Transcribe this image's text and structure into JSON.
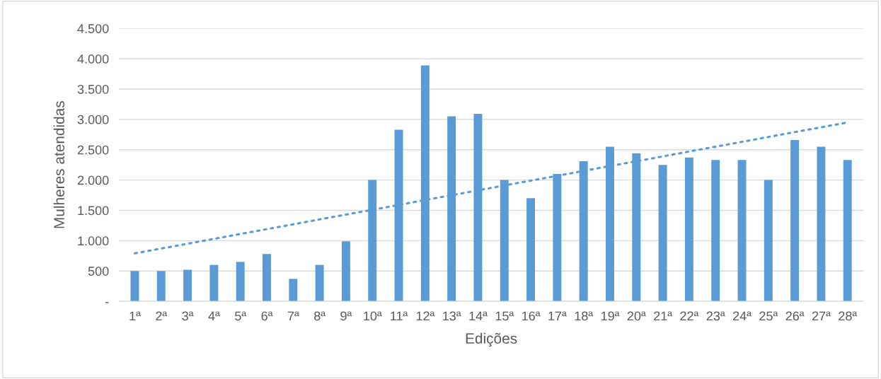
{
  "chart_data": {
    "type": "bar",
    "xlabel": "Edições",
    "ylabel": "Mulheres atendidas",
    "categories": [
      "1ª",
      "2ª",
      "3ª",
      "4ª",
      "5ª",
      "6ª",
      "7ª",
      "8ª",
      "9ª",
      "10ª",
      "11ª",
      "12ª",
      "13ª",
      "14ª",
      "15ª",
      "16ª",
      "17ª",
      "18ª",
      "19ª",
      "20ª",
      "21ª",
      "22ª",
      "23ª",
      "24ª",
      "25ª",
      "26ª",
      "27ª",
      "28ª"
    ],
    "series": [
      {
        "color": "#5b9bd5",
        "values": [
          500,
          500,
          520,
          600,
          650,
          780,
          370,
          600,
          990,
          2000,
          2830,
          3890,
          3050,
          3090,
          2000,
          1700,
          2100,
          2310,
          2550,
          2440,
          2250,
          2370,
          2330,
          2330,
          2000,
          2660,
          2550,
          2330
        ]
      },
      {
        "type": "line",
        "color": "#5b9bd5",
        "line_style": "dotted",
        "values": [
          790,
          870,
          950,
          1030,
          1110,
          1190,
          1270,
          1350,
          1430,
          1510,
          1590,
          1670,
          1750,
          1830,
          1910,
          1990,
          2070,
          2150,
          2230,
          2310,
          2390,
          2470,
          2550,
          2630,
          2710,
          2790,
          2870,
          2950
        ]
      }
    ],
    "ylim": [
      0,
      4500
    ],
    "yticks": [
      {
        "value": 0,
        "label": "-"
      },
      {
        "value": 500,
        "label": "500"
      },
      {
        "value": 1000,
        "label": "1.000"
      },
      {
        "value": 1500,
        "label": "1.500"
      },
      {
        "value": 2000,
        "label": "2.000"
      },
      {
        "value": 2500,
        "label": "2.500"
      },
      {
        "value": 3000,
        "label": "3.000"
      },
      {
        "value": 3500,
        "label": "3.500"
      },
      {
        "value": 4000,
        "label": "4.000"
      },
      {
        "value": 4500,
        "label": "4.500"
      }
    ],
    "grid": "y",
    "legend": false
  }
}
